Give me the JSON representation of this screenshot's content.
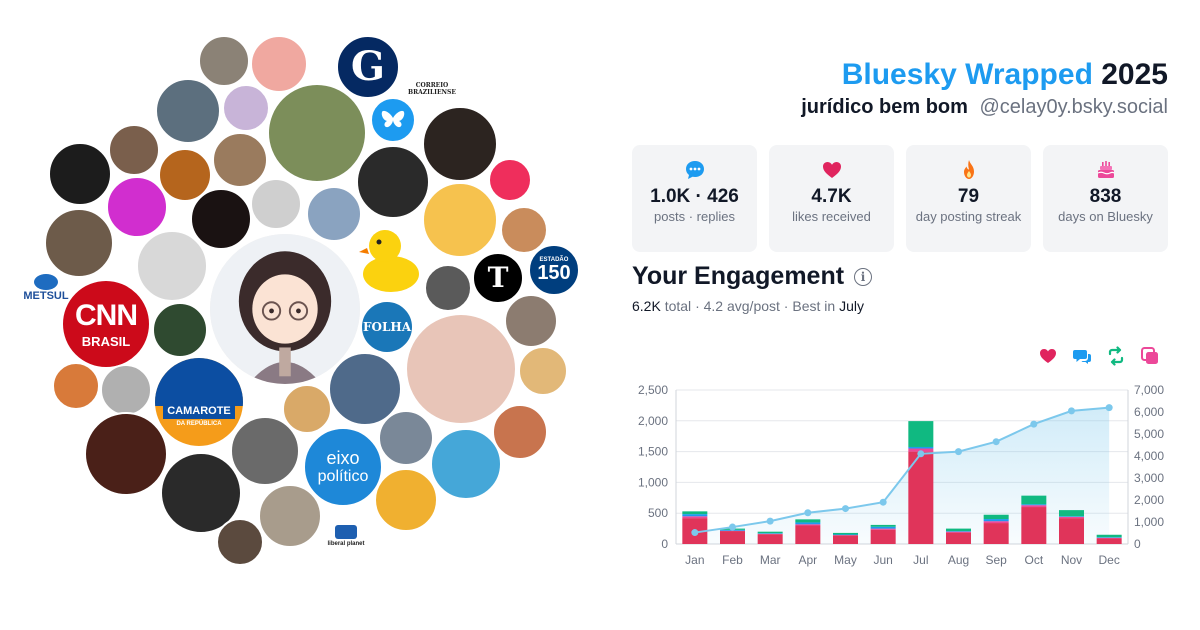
{
  "header": {
    "brand": "Bluesky Wrapped",
    "year": "2025",
    "display_name": "jurídico bem bom",
    "handle": "@celay0y.bsky.social"
  },
  "stats": [
    {
      "icon": "speech-bubble-icon",
      "value": "1.0K · 426",
      "caption": "posts · replies",
      "color": "#1d9bf0"
    },
    {
      "icon": "heart-icon",
      "value": "4.7K",
      "caption": "likes received",
      "color": "#e0245e"
    },
    {
      "icon": "flame-icon",
      "value": "79",
      "caption": "day posting streak",
      "color": "#f97316"
    },
    {
      "icon": "cake-icon",
      "value": "838",
      "caption": "days on Bluesky",
      "color": "#ec4899"
    }
  ],
  "engagement": {
    "title": "Your Engagement",
    "total": "6.2K",
    "total_label": "total",
    "sep1": "·",
    "avg": "4.2 avg/post",
    "sep2": "·",
    "best_label": "Best in",
    "best_month": "July",
    "legend": [
      {
        "icon": "heart-icon",
        "color": "#e0245e"
      },
      {
        "icon": "reply-icon",
        "color": "#1d9bf0"
      },
      {
        "icon": "repost-icon",
        "color": "#10b981"
      },
      {
        "icon": "quote-icon",
        "color": "#ec4899"
      }
    ]
  },
  "avatars": {
    "cnn": {
      "line1": "CNN",
      "line2": "BRASIL"
    },
    "camarote": {
      "line1": "CAMAROTE",
      "line2": "DA REPÚBLICA"
    },
    "folha": "FOLHA",
    "eixo": {
      "line1": "eixo",
      "line2": "político"
    },
    "metsul": "METSUL",
    "correio": {
      "line1": "CORREIO",
      "line2": "BRAZILIENSE"
    },
    "guardian": "G",
    "nyt": "T",
    "estadao": {
      "line1": "ESTADÃO",
      "line2": "150"
    },
    "liberal": "liberal planet"
  },
  "chart_data": {
    "type": "bar",
    "categories": [
      "Jan",
      "Feb",
      "Mar",
      "Apr",
      "May",
      "Jun",
      "Jul",
      "Aug",
      "Sep",
      "Oct",
      "Nov",
      "Dec"
    ],
    "series": [
      {
        "values": [
          420,
          210,
          160,
          300,
          140,
          230,
          1500,
          185,
          340,
          600,
          420,
          90
        ],
        "color": "#e0345a"
      },
      {
        "values": [
          30,
          5,
          5,
          20,
          5,
          20,
          50,
          15,
          30,
          30,
          20,
          10
        ],
        "color": "#ec4899"
      },
      {
        "values": [
          35,
          15,
          10,
          30,
          10,
          30,
          25,
          10,
          35,
          15,
          10,
          10
        ],
        "color": "#1d9bf0"
      },
      {
        "values": [
          45,
          20,
          25,
          50,
          25,
          30,
          420,
          40,
          70,
          140,
          100,
          40
        ],
        "color": "#10b981"
      }
    ],
    "cumulative": {
      "values": [
        520,
        770,
        1040,
        1420,
        1610,
        1900,
        4100,
        4200,
        4650,
        5450,
        6050,
        6200
      ],
      "color": "#7cc8ec"
    },
    "ylim_left": [
      0,
      2500
    ],
    "yticks_left": [
      "0",
      "500",
      "1,000",
      "1,500",
      "2,000",
      "2,500"
    ],
    "ylim_right": [
      0,
      7000
    ],
    "yticks_right": [
      "0",
      "1,000",
      "2,000",
      "3,000",
      "4,000",
      "5,000",
      "6,000",
      "7,000"
    ],
    "grid": true,
    "legend": "top-right"
  }
}
